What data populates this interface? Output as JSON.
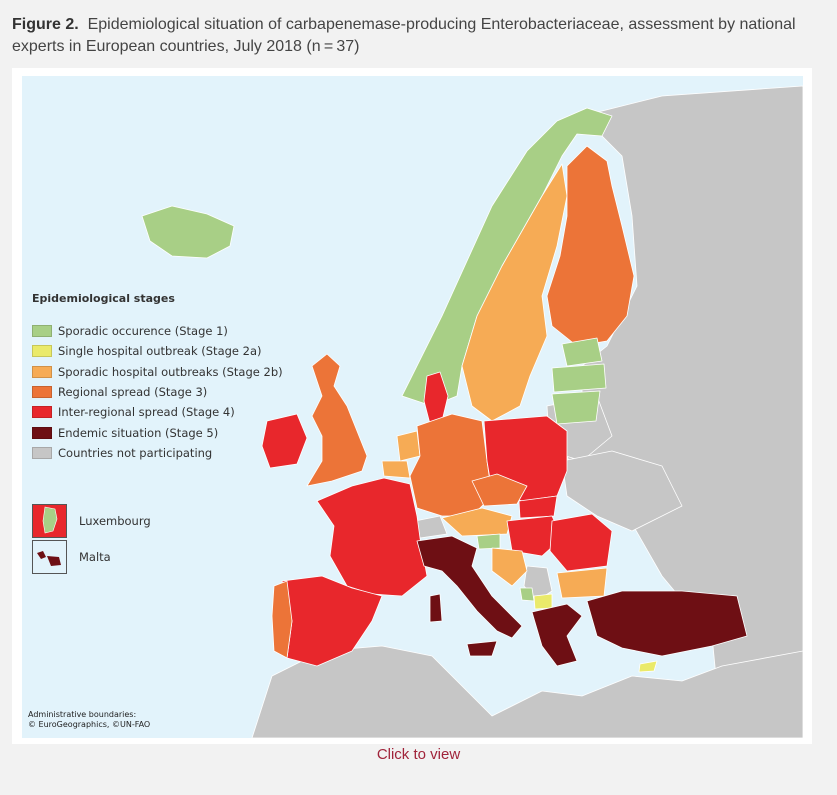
{
  "caption": {
    "label": "Figure 2.",
    "text": "Epidemiological situation of carbapenemase-producing Enterobacteriaceae, assessment by national experts in European countries, July 2018 (n = 37)"
  },
  "legend": {
    "title": "Epidemiological stages",
    "items": [
      {
        "label": "Sporadic occurence (Stage 1)",
        "color": "#a8cf86"
      },
      {
        "label": "Single hospital outbreak (Stage 2a)",
        "color": "#eaea6a"
      },
      {
        "label": "Sporadic hospital outbreaks (Stage 2b)",
        "color": "#f6ab55"
      },
      {
        "label": "Regional spread (Stage 3)",
        "color": "#ec7438"
      },
      {
        "label": "Inter-regional spread (Stage 4)",
        "color": "#e8272c"
      },
      {
        "label": "Endemic situation (Stage 5)",
        "color": "#6e0f14"
      },
      {
        "label": "Countries not participating",
        "color": "#c6c6c6"
      }
    ]
  },
  "insets": {
    "luxembourg": "Luxembourg",
    "malta": "Malta"
  },
  "credits": {
    "line1": "Administrative boundaries:",
    "line2": "© EuroGeographics, ©UN-FAO"
  },
  "link": {
    "label": "Click to view"
  },
  "colors": {
    "sea": "#e2f3fb",
    "stage1": "#a8cf86",
    "stage2a": "#eaea6a",
    "stage2b": "#f6ab55",
    "stage3": "#ec7438",
    "stage4": "#e8272c",
    "stage5": "#6e0f14",
    "nonparticipating": "#c6c6c6"
  }
}
